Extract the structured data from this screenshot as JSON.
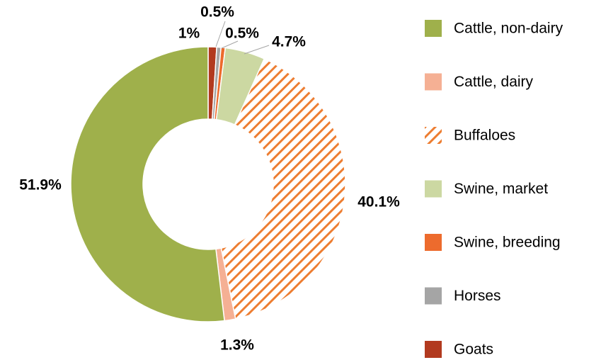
{
  "chart_data": {
    "type": "donut",
    "categories": [
      "Goats",
      "Horses",
      "Swine, breeding",
      "Swine, market",
      "Buffaloes",
      "Cattle, dairy",
      "Cattle, non-dairy"
    ],
    "values": [
      1,
      0.5,
      0.5,
      4.7,
      40.1,
      1.3,
      51.9
    ],
    "value_labels": [
      "1%",
      "0.5%",
      "0.5%",
      "4.7%",
      "40.1%",
      "1.3%",
      "51.9%"
    ],
    "colors": [
      "#b23a1f",
      "#a5a5a5",
      "#ed6b2d",
      "#ccd8a2",
      "#ed7d31",
      "#f5b094",
      "#9fb04b"
    ],
    "hatch": [
      false,
      false,
      false,
      false,
      true,
      false,
      false
    ],
    "legend_order": [
      6,
      5,
      4,
      3,
      2,
      1,
      0
    ],
    "legend": "right"
  }
}
